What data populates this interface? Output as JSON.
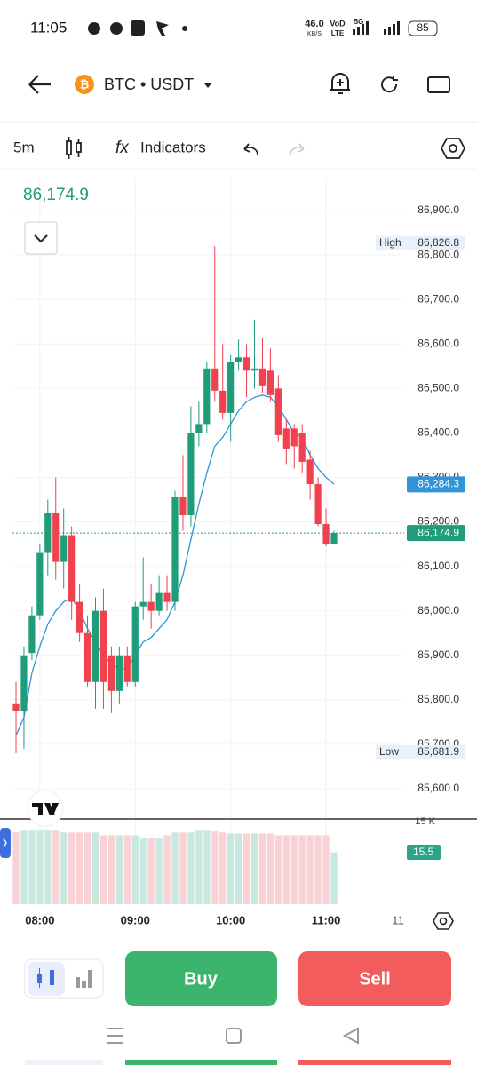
{
  "status_bar": {
    "time": "11:05",
    "speed": "46.0",
    "speed_unit": "KB/S",
    "carrier": "VoD",
    "network": "LTE",
    "signal": "5G",
    "battery": "85"
  },
  "header": {
    "pair": "BTC • USDT"
  },
  "toolbar": {
    "interval": "5m",
    "indicators": "Indicators"
  },
  "chart_data": {
    "type": "candlestick",
    "last_price": "86,174.9",
    "categories": [
      null,
      null,
      null,
      "08:00",
      null,
      null,
      null,
      null,
      null,
      null,
      null,
      null,
      null,
      null,
      null,
      "09:00",
      null,
      null,
      null,
      null,
      null,
      null,
      null,
      null,
      null,
      null,
      null,
      "10:00",
      null,
      null,
      null,
      null,
      null,
      null,
      null,
      null,
      null,
      null,
      null,
      "11:00",
      null
    ],
    "axis_edge_label": "11",
    "open": [
      85790,
      85775,
      85905,
      85990,
      86130,
      86220,
      86110,
      86170,
      86020,
      85950,
      85840,
      86000,
      85900,
      85820,
      85900,
      85840,
      86010,
      86020,
      86000,
      86040,
      86020,
      86255,
      86215,
      86400,
      86420,
      86545,
      86495,
      86445,
      86560,
      86570,
      86540,
      86545,
      86540,
      86500,
      86410,
      86410,
      86400,
      86340,
      86285,
      86195,
      86150
    ],
    "high": [
      85840,
      85920,
      86010,
      86150,
      86250,
      86300,
      86230,
      86190,
      86060,
      85990,
      86030,
      86050,
      85920,
      85920,
      85920,
      86020,
      86120,
      86060,
      86080,
      86080,
      86270,
      86350,
      86460,
      86470,
      86560,
      86820,
      86600,
      86575,
      86610,
      86600,
      86655,
      86615,
      86590,
      86530,
      86430,
      86420,
      86420,
      86360,
      86300,
      86230,
      86180
    ],
    "low": [
      85680,
      85690,
      85890,
      85980,
      86080,
      86070,
      86050,
      85980,
      85930,
      85830,
      85780,
      85780,
      85770,
      85790,
      85830,
      85830,
      85980,
      85960,
      85990,
      86000,
      86000,
      86180,
      86190,
      86370,
      86400,
      86470,
      86430,
      86380,
      86540,
      86480,
      86500,
      86490,
      86470,
      86380,
      86330,
      86320,
      86310,
      86250,
      86190,
      86145,
      86150
    ],
    "close": [
      85775,
      85900,
      85990,
      86130,
      86220,
      86110,
      86170,
      86020,
      85950,
      85840,
      86000,
      85840,
      85820,
      85900,
      85840,
      86010,
      86020,
      86000,
      86040,
      86020,
      86255,
      86215,
      86400,
      86420,
      86545,
      86495,
      86445,
      86560,
      86570,
      86540,
      86545,
      86505,
      86485,
      86395,
      86365,
      86370,
      86335,
      86285,
      86195,
      86150,
      86175
    ],
    "up_color": "#1f9c7a",
    "down_color": "#f0414f",
    "ma": {
      "color": "#2f95d6",
      "values": [
        85720,
        85760,
        85860,
        85920,
        85970,
        86000,
        86020,
        86030,
        86000,
        85960,
        85930,
        85900,
        85880,
        85870,
        85870,
        85900,
        85930,
        85940,
        85960,
        85980,
        86020,
        86080,
        86160,
        86240,
        86310,
        86370,
        86390,
        86420,
        86450,
        86470,
        86480,
        86485,
        86480,
        86460,
        86430,
        86400,
        86390,
        86350,
        86320,
        86300,
        86285
      ]
    },
    "ylim": [
      85536,
      86974
    ],
    "yticks": [
      {
        "value": 86900,
        "label": "86,900.0"
      },
      {
        "value": 86800,
        "label": "86,800.0"
      },
      {
        "value": 86700,
        "label": "86,700.0"
      },
      {
        "value": 86600,
        "label": "86,600.0"
      },
      {
        "value": 86500,
        "label": "86,500.0"
      },
      {
        "value": 86400,
        "label": "86,400.0"
      },
      {
        "value": 86300,
        "label": "86,300.0"
      },
      {
        "value": 86200,
        "label": "86,200.0"
      },
      {
        "value": 86100,
        "label": "86,100.0"
      },
      {
        "value": 86000,
        "label": "86,000.0"
      },
      {
        "value": 85900,
        "label": "85,900.0"
      },
      {
        "value": 85800,
        "label": "85,800.0"
      },
      {
        "value": 85700,
        "label": "85,700.0"
      },
      {
        "value": 85600,
        "label": "85,600.0"
      }
    ],
    "price_tag": {
      "value": 86174.9,
      "label": "86,174.9"
    },
    "ma_tag": {
      "value": 86284.3,
      "label": "86,284.3"
    },
    "high_tag": {
      "name": "High",
      "value": 86826.8,
      "label": "86,826.8"
    },
    "low_tag": {
      "name": "Low",
      "value": 85681.9,
      "label": "85,681.9"
    },
    "volume": {
      "values": [
        13,
        13.5,
        13.5,
        13.5,
        13.5,
        13.5,
        13,
        13,
        13,
        13,
        13,
        12.5,
        12.5,
        12.5,
        12.5,
        12.5,
        12,
        12,
        12,
        12.5,
        13,
        13,
        13,
        13.5,
        13.5,
        13.2,
        13,
        12.8,
        12.8,
        12.8,
        12.8,
        12.8,
        12.8,
        12.5,
        12.5,
        12.5,
        12.5,
        12.5,
        12.5,
        12.5,
        9.4
      ],
      "ylim": [
        0,
        15.3
      ],
      "yticks": [
        {
          "value": 15,
          "label": "15 K"
        }
      ],
      "label": "15.5"
    }
  },
  "actions": {
    "buy": "Buy",
    "sell": "Sell"
  }
}
